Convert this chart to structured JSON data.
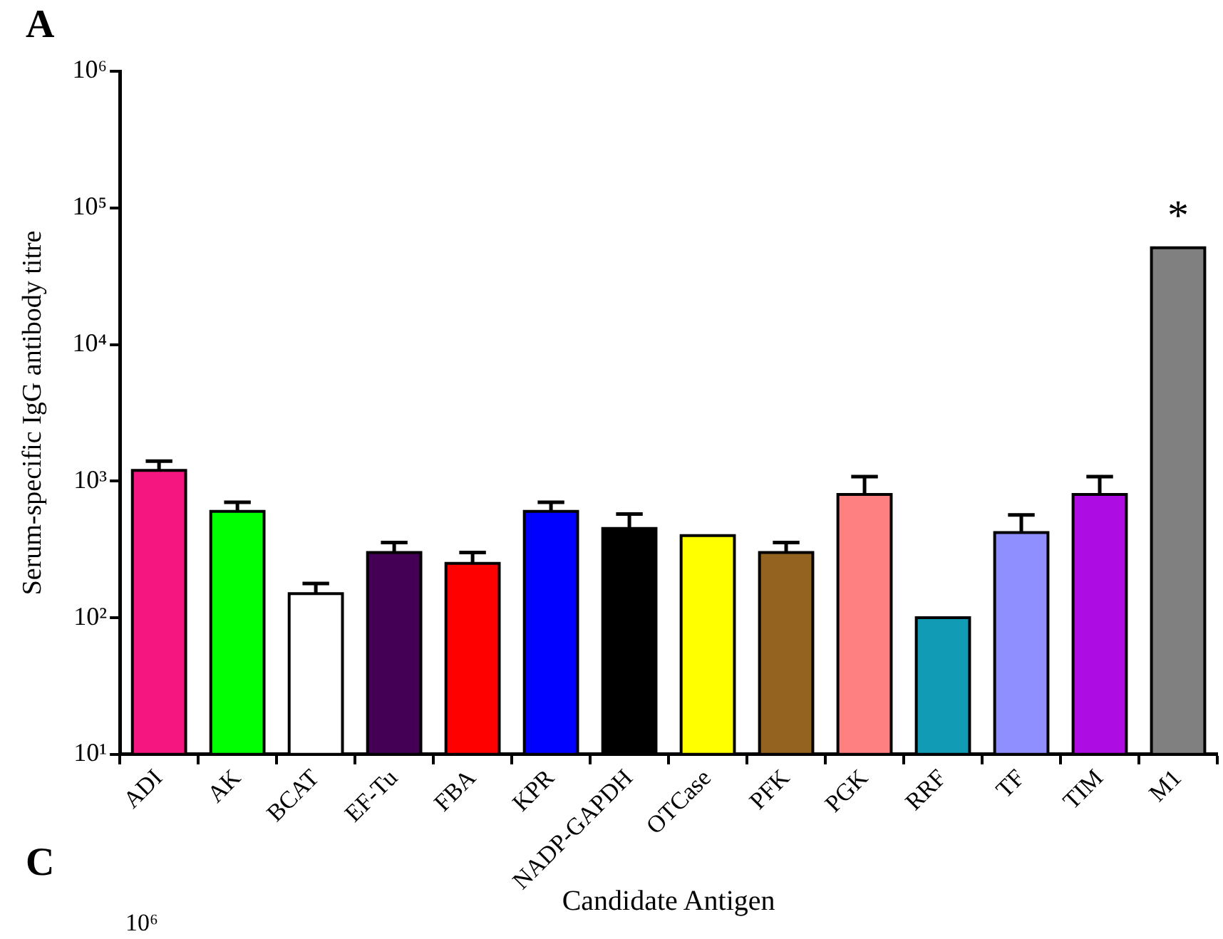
{
  "chart_data": {
    "type": "bar",
    "xlabel": "Candidate Antigen",
    "ylabel": "Serum-specific IgG antibody titre",
    "categories": [
      "ADI",
      "AK",
      "BCAT",
      "EF-Tu",
      "FBA",
      "KPR",
      "NADP-GAPDH",
      "OTCase",
      "PFK",
      "PGK",
      "RRF",
      "TF",
      "TIM",
      "M1"
    ],
    "values": [
      1200,
      600,
      150,
      300,
      250,
      600,
      450,
      400,
      300,
      800,
      100,
      420,
      800,
      51000
    ],
    "colors": [
      "#f5177f",
      "#00ff00",
      "#ffffff",
      "#440055",
      "#ff0000",
      "#0000ff",
      "#000000",
      "#ffff00",
      "#956320",
      "#ff8080",
      "#119bb4",
      "#8f8fff",
      "#ad0de2",
      "#808080"
    ],
    "errors": [
      [
        1200,
        1400
      ],
      [
        600,
        700
      ],
      [
        150,
        178
      ],
      [
        300,
        355
      ],
      [
        250,
        300
      ],
      [
        600,
        700
      ],
      [
        450,
        575
      ],
      null,
      [
        300,
        355
      ],
      [
        800,
        1080
      ],
      null,
      [
        420,
        565
      ],
      [
        800,
        1080
      ],
      null
    ],
    "log": true,
    "ylim": [
      10,
      1000000
    ],
    "yticks": [
      {
        "value": 10,
        "label": "10¹"
      },
      {
        "value": 100,
        "label": "10²"
      },
      {
        "value": 1000,
        "label": "10³"
      },
      {
        "value": 10000,
        "label": "10⁴"
      },
      {
        "value": 100000,
        "label": "10⁵"
      },
      {
        "value": 1000000,
        "label": "10⁶"
      }
    ],
    "grid": false,
    "legend": false,
    "annotations": [
      "*",
      "A",
      "C",
      "10⁶"
    ]
  }
}
